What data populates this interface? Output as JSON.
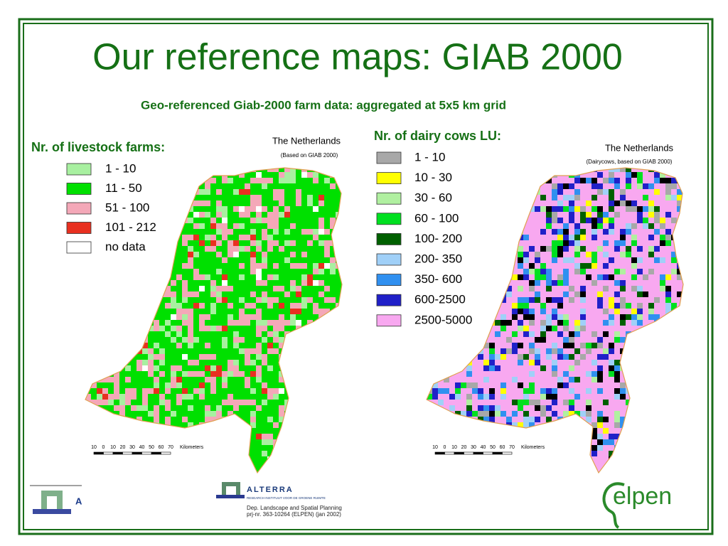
{
  "title": "Our reference maps: GIAB 2000",
  "subtitle": "Geo-referenced Giab-2000 farm data: aggregated at 5x5 km grid",
  "left_map": {
    "legend_title": "Nr. of livestock farms:",
    "legend": [
      {
        "label": "1   - 10",
        "color": "#a8f0a0"
      },
      {
        "label": "11 - 50",
        "color": "#00e000"
      },
      {
        "label": "51 - 100",
        "color": "#f4a8b8"
      },
      {
        "label": "101 - 212",
        "color": "#e83020"
      },
      {
        "label": "no data",
        "color": "#ffffff"
      }
    ],
    "map_title": "The Netherlands",
    "map_subtitle": "(Based on GIAB 2000)",
    "scale_labels": [
      10,
      0,
      10,
      20,
      30,
      40,
      50,
      60,
      70
    ],
    "scale_unit": "Kilometers"
  },
  "right_map": {
    "legend_title": "Nr. of dairy cows LU:",
    "legend": [
      {
        "label": "1   - 10",
        "color": "#a8a8a8"
      },
      {
        "label": "10 - 30",
        "color": "#ffff00"
      },
      {
        "label": "30 - 60",
        "color": "#b0f0a0"
      },
      {
        "label": "60 - 100",
        "color": "#00e020"
      },
      {
        "label": "100- 200",
        "color": "#006000"
      },
      {
        "label": "200- 350",
        "color": "#a0d0f8"
      },
      {
        "label": "350- 600",
        "color": "#3090f0"
      },
      {
        "label": "600-2500",
        "color": "#2020c8"
      },
      {
        "label": "2500-5000",
        "color": "#f8a8f0"
      },
      {
        "label_extra": null
      }
    ],
    "map_title": "The Netherlands",
    "map_subtitle": "(Dairycows, based on GIAB 2000)",
    "scale_labels": [
      10,
      0,
      10,
      20,
      30,
      40,
      50,
      60,
      70
    ],
    "scale_unit": "Kilometers"
  },
  "footer": {
    "alterra_name": "ALTERRA",
    "alterra_tagline": "RESEARCH INSTITUUT VOOR DE GROENE RUIMTE",
    "department": "Dep. Landscape and Spatial Planning",
    "project": "prj-nr. 363-10264 (ELPEN)   (jan 2002)",
    "left_logo_letter": "A",
    "elpen": "elpen"
  }
}
